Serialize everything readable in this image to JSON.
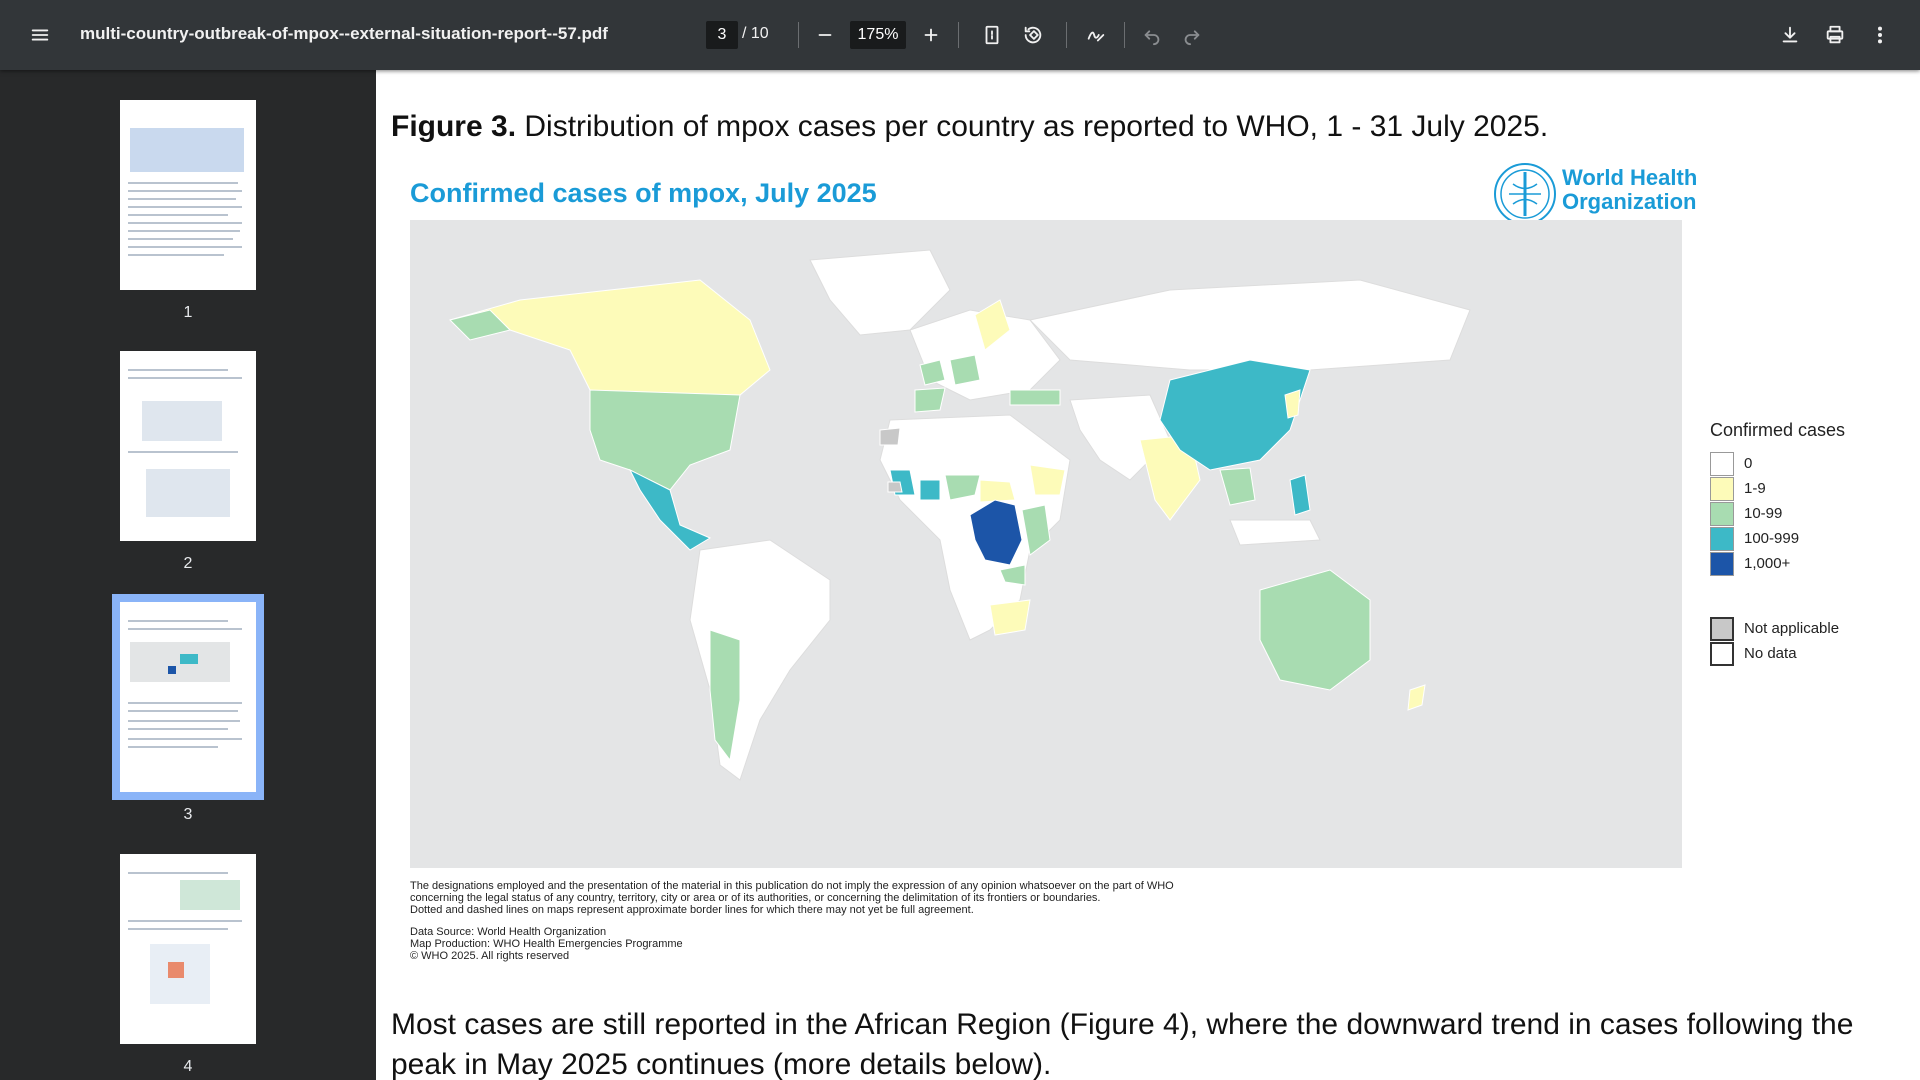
{
  "toolbar": {
    "title": "multi-country-outbreak-of-mpox--external-situation-report--57.pdf",
    "page_current": "3",
    "page_total": "/ 10",
    "zoom": "175%"
  },
  "sidebar": {
    "thumbnails": [
      {
        "label": "1"
      },
      {
        "label": "2"
      },
      {
        "label": "3",
        "active": true
      },
      {
        "label": "4"
      }
    ]
  },
  "page": {
    "figure_caption_bold": "Figure 3.",
    "figure_caption_text": " Distribution of mpox cases per country as reported to WHO, 1 - 31 July 2025.",
    "map_title": "Confirmed cases of mpox, July 2025",
    "who_line1": "World Health",
    "who_line2": "Organization",
    "legend": {
      "title": "Confirmed cases",
      "items": [
        {
          "label": "0",
          "color": "#ffffff"
        },
        {
          "label": "1-9",
          "color": "#fdfbb9"
        },
        {
          "label": "10-99",
          "color": "#a8dcb1"
        },
        {
          "label": "100-999",
          "color": "#3db9c7"
        },
        {
          "label": "1,000+",
          "color": "#1c55a8"
        }
      ],
      "other": [
        {
          "label": "Not applicable",
          "color": "#c8c8c8"
        },
        {
          "label": "No data",
          "color": "#ffffff"
        }
      ]
    },
    "disclaimer": [
      "The designations employed and the presentation of the material in this publication do not imply the expression of any opinion whatsoever on the part of WHO",
      "concerning the legal status of any country, territory, city or area or of its authorities, or concerning the delimitation of its frontiers or boundaries.",
      "Dotted and dashed lines on maps represent approximate border lines for which there may not yet be full agreement."
    ],
    "source": [
      "Data Source: World Health Organization",
      "Map Production: WHO Health Emergencies Programme",
      "© WHO 2025. All rights reserved"
    ],
    "body_text": "Most cases are still reported in the African Region (Figure 4), where the downward trend in cases following the peak in May 2025 continues (more details below)."
  }
}
